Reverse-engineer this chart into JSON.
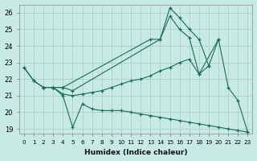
{
  "xlabel": "Humidex (Indice chaleur)",
  "ylabel": "",
  "xlim": [
    -0.5,
    23.5
  ],
  "ylim": [
    18.7,
    26.5
  ],
  "yticks": [
    19,
    20,
    21,
    22,
    23,
    24,
    25,
    26
  ],
  "xticks": [
    0,
    1,
    2,
    3,
    4,
    5,
    6,
    7,
    8,
    9,
    10,
    11,
    12,
    13,
    14,
    15,
    16,
    17,
    18,
    19,
    20,
    21,
    22,
    23
  ],
  "bg_color": "#c8eae4",
  "grid_color": "#a8c8c4",
  "line_color": "#1a6b5a",
  "series": [
    {
      "x": [
        0,
        1,
        2,
        3,
        4,
        5,
        14,
        15,
        16,
        17,
        18,
        19,
        20,
        21,
        22,
        23
      ],
      "y": [
        22.7,
        21.9,
        21.5,
        21.5,
        21.5,
        21.3,
        24.4,
        26.3,
        25.7,
        25.0,
        24.4,
        22.8,
        24.4,
        21.5,
        20.7,
        18.8
      ]
    },
    {
      "x": [
        2,
        3,
        4,
        13,
        14,
        15,
        16,
        17,
        18,
        20
      ],
      "y": [
        21.5,
        21.5,
        21.5,
        24.4,
        24.4,
        25.8,
        25.0,
        24.5,
        22.3,
        24.4
      ]
    },
    {
      "x": [
        0,
        1,
        2,
        3,
        4,
        5,
        6,
        7,
        8,
        9,
        10,
        11,
        12,
        13,
        14,
        15,
        16,
        17,
        18,
        19
      ],
      "y": [
        22.7,
        21.9,
        21.5,
        21.5,
        21.1,
        21.0,
        21.1,
        21.2,
        21.3,
        21.5,
        21.7,
        21.9,
        22.0,
        22.2,
        22.5,
        22.7,
        23.0,
        23.2,
        22.3,
        22.8
      ]
    },
    {
      "x": [
        2,
        3,
        4,
        5,
        6,
        7,
        8,
        9,
        10,
        11,
        12,
        13,
        14,
        15,
        16,
        17,
        18,
        19,
        20,
        21,
        22,
        23
      ],
      "y": [
        21.5,
        21.5,
        21.0,
        19.1,
        20.5,
        20.2,
        20.1,
        20.1,
        20.1,
        20.0,
        19.9,
        19.8,
        19.7,
        19.6,
        19.5,
        19.4,
        19.3,
        19.2,
        19.1,
        19.0,
        18.9,
        18.8
      ]
    }
  ]
}
